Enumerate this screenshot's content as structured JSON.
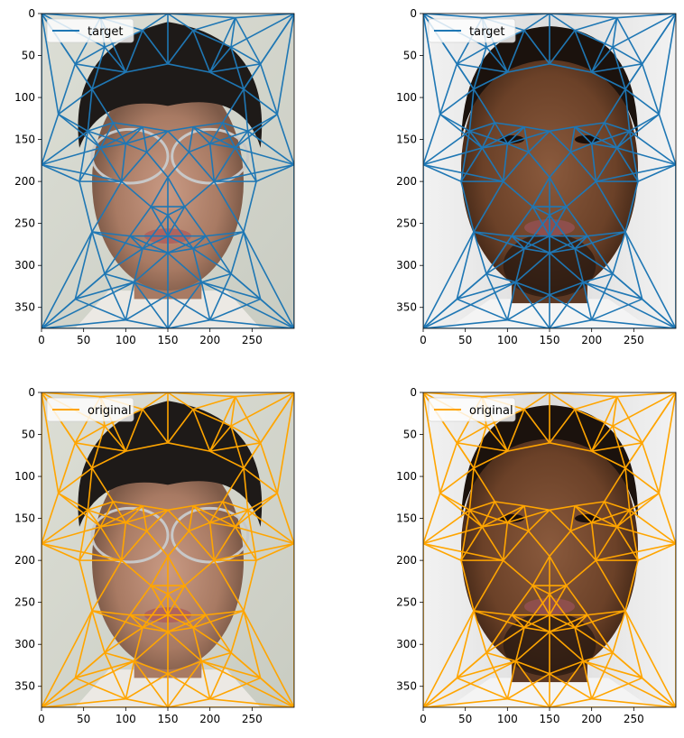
{
  "figure": {
    "background": "#ffffff"
  },
  "colors": {
    "target": "#1f77b4",
    "original": "#ffa500"
  },
  "chart_data": [
    {
      "type": "line",
      "panel": "top-left",
      "image": "face-photo-glasses",
      "legend": {
        "label": "target",
        "placement": "top-left"
      },
      "series": [
        {
          "name": "target",
          "color": "#1f77b4"
        }
      ],
      "xlim": [
        0,
        300
      ],
      "ylim": [
        375,
        0
      ],
      "xticks": [
        0,
        50,
        100,
        150,
        200,
        250
      ],
      "yticks": [
        0,
        50,
        100,
        150,
        200,
        250,
        300,
        350
      ],
      "grid": false
    },
    {
      "type": "line",
      "panel": "top-right",
      "image": "face-photo-beard",
      "legend": {
        "label": "target",
        "placement": "top-left"
      },
      "series": [
        {
          "name": "target",
          "color": "#1f77b4"
        }
      ],
      "xlim": [
        0,
        300
      ],
      "ylim": [
        375,
        0
      ],
      "xticks": [
        0,
        50,
        100,
        150,
        200,
        250
      ],
      "yticks": [
        0,
        50,
        100,
        150,
        200,
        250,
        300,
        350
      ],
      "grid": false
    },
    {
      "type": "line",
      "panel": "bottom-left",
      "image": "face-photo-glasses",
      "legend": {
        "label": "original",
        "placement": "top-left"
      },
      "series": [
        {
          "name": "original",
          "color": "#ffa500"
        }
      ],
      "xlim": [
        0,
        300
      ],
      "ylim": [
        375,
        0
      ],
      "xticks": [
        0,
        50,
        100,
        150,
        200,
        250
      ],
      "yticks": [
        0,
        50,
        100,
        150,
        200,
        250,
        300,
        350
      ],
      "grid": false
    },
    {
      "type": "line",
      "panel": "bottom-right",
      "image": "face-photo-beard",
      "legend": {
        "label": "original",
        "placement": "top-left"
      },
      "series": [
        {
          "name": "original",
          "color": "#ffa500"
        }
      ],
      "xlim": [
        0,
        300
      ],
      "ylim": [
        375,
        0
      ],
      "xticks": [
        0,
        50,
        100,
        150,
        200,
        250
      ],
      "yticks": [
        0,
        50,
        100,
        150,
        200,
        250,
        300,
        350
      ],
      "grid": false
    }
  ]
}
